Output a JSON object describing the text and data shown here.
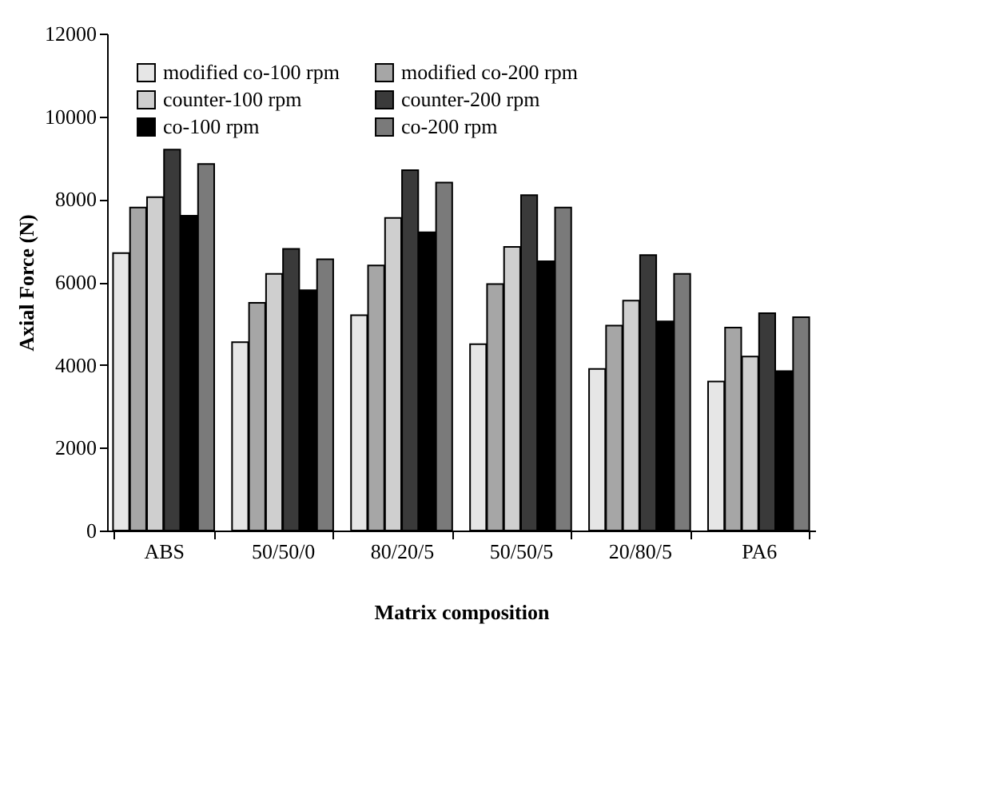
{
  "chart_data": {
    "type": "bar",
    "xlabel": "Matrix composition",
    "ylabel": "Axial Force (N)",
    "categories": [
      "ABS",
      "50/50/0",
      "80/20/5",
      "50/50/5",
      "20/80/5",
      "PA6"
    ],
    "series": [
      {
        "name": "modified co-100 rpm",
        "color": "#e6e6e6",
        "values": [
          6700,
          4550,
          5200,
          4500,
          3900,
          3600
        ]
      },
      {
        "name": "modified co-200 rpm",
        "color": "#a6a6a6",
        "values": [
          7800,
          5500,
          6400,
          5950,
          4950,
          4900
        ]
      },
      {
        "name": "counter-100 rpm",
        "color": "#cfcfcf",
        "values": [
          8050,
          6200,
          7550,
          6850,
          5550,
          4200
        ]
      },
      {
        "name": "counter-200 rpm",
        "color": "#3a3a3a",
        "values": [
          9200,
          6800,
          8700,
          8100,
          6650,
          5250
        ]
      },
      {
        "name": "co-100 rpm",
        "color": "#000000",
        "values": [
          7600,
          5800,
          7200,
          6500,
          5050,
          3850
        ]
      },
      {
        "name": "co-200 rpm",
        "color": "#7a7a7a",
        "values": [
          8850,
          6550,
          8400,
          7800,
          6200,
          5150
        ]
      }
    ],
    "ylim": [
      0,
      12000
    ],
    "yticks": [
      0,
      2000,
      4000,
      6000,
      8000,
      10000,
      12000
    ],
    "grid": false,
    "legend": "top left"
  }
}
